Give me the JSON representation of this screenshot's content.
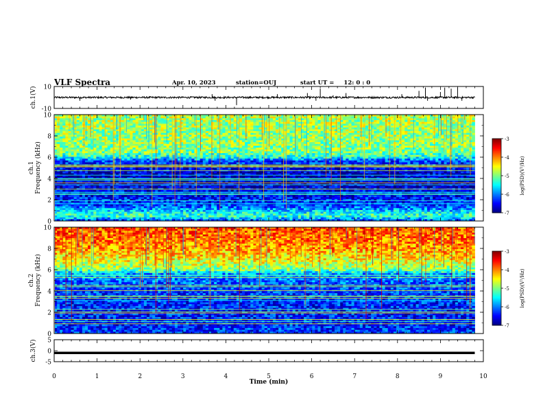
{
  "header": {
    "title": "VLF Spectra",
    "date": "Apr. 10, 2023",
    "station_label": "station=",
    "station": "OUJ",
    "start_label": "start UT =",
    "start_time": "12: 0 : 0"
  },
  "chart_data": [
    {
      "type": "line",
      "panel": "ch1-waveform",
      "ylabel": "ch.1(V)",
      "ylim": [
        -10,
        10
      ],
      "yticks": [
        "10",
        "-10"
      ],
      "xlim": [
        0,
        10
      ],
      "baseline": 0,
      "spikes": [
        {
          "x": 0.6,
          "y": -3
        },
        {
          "x": 1.78,
          "y": -2
        },
        {
          "x": 3.68,
          "y": 3
        },
        {
          "x": 3.75,
          "y": -3
        },
        {
          "x": 4.25,
          "y": -7
        },
        {
          "x": 5.2,
          "y": 3
        },
        {
          "x": 5.9,
          "y": 4
        },
        {
          "x": 6.1,
          "y": -3
        },
        {
          "x": 6.2,
          "y": 8
        },
        {
          "x": 6.5,
          "y": 2
        },
        {
          "x": 6.8,
          "y": 4
        },
        {
          "x": 8.1,
          "y": 3
        },
        {
          "x": 8.5,
          "y": 6
        },
        {
          "x": 8.65,
          "y": 9
        },
        {
          "x": 8.7,
          "y": -3
        },
        {
          "x": 9.0,
          "y": 5
        },
        {
          "x": 9.1,
          "y": 9
        },
        {
          "x": 9.25,
          "y": 8
        },
        {
          "x": 9.4,
          "y": 9
        },
        {
          "x": 9.5,
          "y": -3
        }
      ]
    },
    {
      "type": "heatmap",
      "panel": "ch1-spectrogram",
      "ylabel": "ch.1 Frequency (kHz)",
      "ylim": [
        0,
        10
      ],
      "yticks": [
        "0",
        "2",
        "4",
        "6",
        "8",
        "10"
      ],
      "xlim": [
        0,
        10
      ],
      "data_end": 9.8,
      "level_by_freq": [
        {
          "f": 0,
          "v": -6.3
        },
        {
          "f": 0.5,
          "v": -5.2
        },
        {
          "f": 1.5,
          "v": -6.3
        },
        {
          "f": 4,
          "v": -6.8
        },
        {
          "f": 5.6,
          "v": -6.3
        },
        {
          "f": 6,
          "v": -5.4
        },
        {
          "f": 6.5,
          "v": -5.0
        },
        {
          "f": 8,
          "v": -4.9
        },
        {
          "f": 10,
          "v": -4.8
        }
      ],
      "colorbar": {
        "label": "log(PSD)(V²/Hz)",
        "range": [
          -7,
          -3
        ],
        "ticks": [
          "-3",
          "-4",
          "-5",
          "-6",
          "-7"
        ]
      }
    },
    {
      "type": "heatmap",
      "panel": "ch2-spectrogram",
      "ylabel": "ch.2 Frequency (kHz)",
      "ylim": [
        0,
        10
      ],
      "yticks": [
        "0",
        "2",
        "4",
        "6",
        "8",
        "10"
      ],
      "xlim": [
        0,
        10
      ],
      "data_end": 9.8,
      "level_by_freq": [
        {
          "f": 0,
          "v": -6.3
        },
        {
          "f": 1.5,
          "v": -6.4
        },
        {
          "f": 4,
          "v": -6.3
        },
        {
          "f": 5.6,
          "v": -5.9
        },
        {
          "f": 6,
          "v": -5.0
        },
        {
          "f": 6.5,
          "v": -4.7
        },
        {
          "f": 8,
          "v": -4.1
        },
        {
          "f": 10,
          "v": -3.8
        }
      ],
      "colorbar": {
        "label": "log(PSD)(V²/Hz)",
        "range": [
          -7,
          -3
        ],
        "ticks": [
          "-3",
          "-4",
          "-5",
          "-6",
          "-7"
        ]
      }
    },
    {
      "type": "line",
      "panel": "ch3-waveform",
      "ylabel": "ch.3(V)",
      "ylim": [
        -5,
        5
      ],
      "yticks": [
        "5",
        "0",
        "-5"
      ],
      "xlim": [
        0,
        10
      ],
      "constant": -1,
      "xlabel": "Time (min)",
      "xticks": [
        "0",
        "1",
        "2",
        "3",
        "4",
        "5",
        "6",
        "7",
        "8",
        "9",
        "10"
      ]
    }
  ]
}
